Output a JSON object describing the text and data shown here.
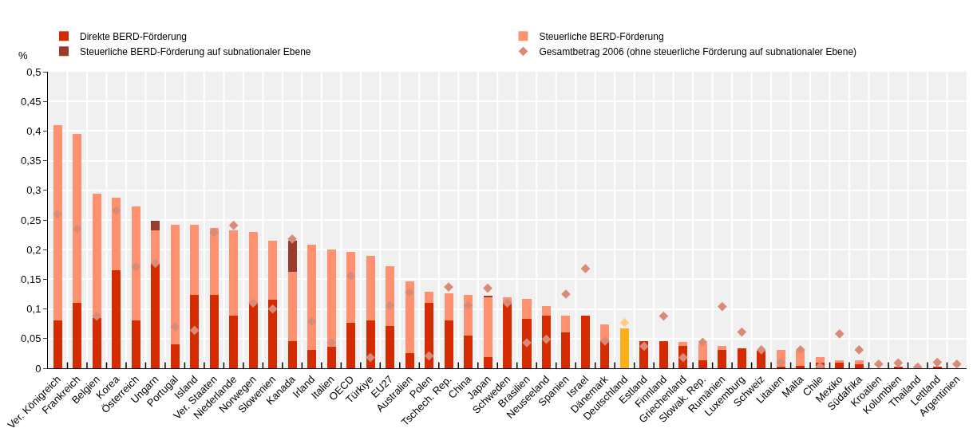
{
  "chart_data": {
    "type": "bar",
    "stacked": true,
    "ylabel": "%",
    "categories": [
      "Ver. Königreich",
      "Frankreich",
      "Belgien",
      "Korea",
      "Österreich",
      "Ungarn",
      "Portugal",
      "Island",
      "Ver. Staaten",
      "Niederlande",
      "Norwegen",
      "Slowenien",
      "Kanada",
      "Irland",
      "Italien",
      "OECD",
      "Türkiye",
      "EU27",
      "Australien",
      "Polen",
      "Tschech. Rep.",
      "China",
      "Japan",
      "Schweden",
      "Brasilien",
      "Neuseeland",
      "Spanien",
      "Israel",
      "Dänemark",
      "Deutschland",
      "Estland",
      "Finnland",
      "Griechenland",
      "Slowak. Rep.",
      "Rumänien",
      "Luxemburg",
      "Schweiz",
      "Litauen",
      "Malta",
      "Chile",
      "Mexiko",
      "Südafrika",
      "Kroatien",
      "Kolumbien",
      "Thailand",
      "Lettland",
      "Argentinien"
    ],
    "series": [
      {
        "name": "Direkte BERD-Förderung",
        "color": "#d42c00",
        "colors": [
          "#d42c00",
          "#d42c00",
          "#d42c00",
          "#d42c00",
          "#d42c00",
          "#d42c00",
          "#d42c00",
          "#d42c00",
          "#d42c00",
          "#d42c00",
          "#d42c00",
          "#d42c00",
          "#d42c00",
          "#d42c00",
          "#d42c00",
          "#d42c00",
          "#d42c00",
          "#d42c00",
          "#d42c00",
          "#d42c00",
          "#d42c00",
          "#d42c00",
          "#d42c00",
          "#d42c00",
          "#d42c00",
          "#d42c00",
          "#d42c00",
          "#d42c00",
          "#d42c00",
          "#fbb01a",
          "#d42c00",
          "#d42c00",
          "#d42c00",
          "#d42c00",
          "#d42c00",
          "#d42c00",
          "#d42c00",
          "#d42c00",
          "#d42c00",
          "#d42c00",
          "#d42c00",
          "#d42c00",
          "#d42c00",
          "#d42c00",
          "#d42c00",
          "#d42c00",
          "#d42c00"
        ],
        "values": [
          0.08,
          0.11,
          0.085,
          0.166,
          0.08,
          0.177,
          0.04,
          0.123,
          0.123,
          0.089,
          0.11,
          0.116,
          0.046,
          0.031,
          0.036,
          0.077,
          0.08,
          0.071,
          0.026,
          0.11,
          0.08,
          0.055,
          0.019,
          0.11,
          0.083,
          0.089,
          0.061,
          0.089,
          0.046,
          0.067,
          0.046,
          0.046,
          0.037,
          0.013,
          0.031,
          0.034,
          0.029,
          0.003,
          0.004,
          0.009,
          0.01,
          0.007,
          null,
          0.003,
          null,
          0.003,
          null
        ]
      },
      {
        "name": "Steuerliche BERD-Förderung",
        "color": "#ff9170",
        "values": [
          0.33,
          0.285,
          0.209,
          0.122,
          0.193,
          0.056,
          0.202,
          0.119,
          0.113,
          0.144,
          0.12,
          0.099,
          0.117,
          0.178,
          0.164,
          0.119,
          0.11,
          0.101,
          0.121,
          0.019,
          0.046,
          0.068,
          0.101,
          0.01,
          0.034,
          0.016,
          0.028,
          null,
          0.028,
          null,
          null,
          null,
          0.007,
          0.029,
          0.007,
          null,
          null,
          0.028,
          0.026,
          0.01,
          0.003,
          0.006,
          null,
          null,
          null,
          null,
          null
        ]
      },
      {
        "name": "Steuerliche BERD-Förderung auf subnationaler Ebene",
        "color": "#9b3a2e",
        "values": [
          null,
          null,
          null,
          null,
          null,
          0.015,
          null,
          null,
          null,
          null,
          null,
          null,
          0.052,
          null,
          null,
          null,
          null,
          null,
          null,
          null,
          null,
          null,
          0.002,
          null,
          null,
          null,
          null,
          null,
          null,
          null,
          null,
          null,
          null,
          null,
          null,
          null,
          null,
          null,
          null,
          null,
          null,
          null,
          null,
          null,
          null,
          null,
          null
        ]
      },
      {
        "name": "Gesamtbetrag 2006 (ohne steuerliche Förderung auf subnationaler Ebene)",
        "type": "scatter",
        "marker": "diamond",
        "color": "#d98b77",
        "colors": [
          "#d98b77",
          "#d98b77",
          "#d98b77",
          "#d98b77",
          "#d98b77",
          "#d98b77",
          "#d98b77",
          "#d98b77",
          "#d98b77",
          "#d98b77",
          "#d98b77",
          "#d98b77",
          "#d98b77",
          "#d98b77",
          "#d98b77",
          "#d98b77",
          "#d98b77",
          "#d98b77",
          "#d98b77",
          "#d98b77",
          "#d98b77",
          "#d98b77",
          "#d98b77",
          "#d98b77",
          "#d98b77",
          "#d98b77",
          "#d98b77",
          "#d98b77",
          "#d98b77",
          "#fdd080",
          "#d98b77",
          "#d98b77",
          "#d98b77",
          "#d98b77",
          "#d98b77",
          "#d98b77",
          "#d98b77",
          "#d98b77",
          "#d98b77",
          "#d98b77",
          "#d98b77",
          "#d98b77",
          "#d98b77",
          "#d98b77",
          "#d98b77",
          "#d98b77",
          "#d98b77"
        ],
        "values": [
          0.26,
          0.235,
          0.088,
          0.266,
          0.171,
          0.177,
          0.07,
          0.064,
          0.229,
          0.241,
          0.11,
          0.1,
          0.218,
          0.079,
          0.043,
          0.156,
          0.018,
          0.106,
          0.128,
          0.021,
          0.137,
          0.106,
          0.135,
          0.11,
          0.043,
          0.049,
          0.125,
          0.168,
          0.046,
          0.077,
          0.037,
          0.088,
          0.018,
          0.044,
          0.104,
          0.061,
          0.031,
          0.01,
          0.031,
          0.003,
          0.058,
          0.031,
          0.007,
          0.009,
          0.002,
          0.01,
          0.007
        ]
      }
    ],
    "ylim": [
      0,
      0.5
    ],
    "yticks": [
      0,
      {
        "value": 0.05,
        "label": "0,05"
      },
      {
        "value": 0.1,
        "label": "0,1"
      },
      {
        "value": 0.15,
        "label": "0,15"
      },
      {
        "value": 0.2,
        "label": "0,2"
      },
      {
        "value": 0.25,
        "label": "0,25"
      },
      {
        "value": 0.3,
        "label": "0,3"
      },
      {
        "value": 0.35,
        "label": "0,35"
      },
      {
        "value": 0.4,
        "label": "0,4"
      },
      {
        "value": 0.45,
        "label": "0,45"
      },
      {
        "value": 0.5,
        "label": "0,5"
      }
    ],
    "grid": true,
    "legend": "top"
  }
}
